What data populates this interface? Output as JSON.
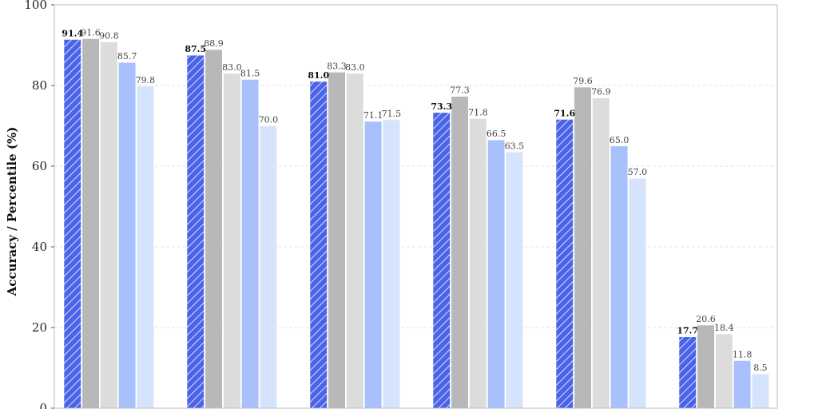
{
  "chart_data": {
    "type": "bar",
    "title": "",
    "ylabel": "Accuracy / Percentile (%)",
    "xlabel": "",
    "ylim": [
      0,
      100
    ],
    "yticks": [
      0,
      20,
      40,
      60,
      80,
      100
    ],
    "grid": "y-dashed",
    "categories": [
      "",
      "",
      "",
      "",
      "",
      ""
    ],
    "series": [
      {
        "values": [
          91.4,
          87.5,
          81.0,
          73.3,
          71.6,
          17.7
        ],
        "color": "#4a63e8",
        "hatch": true,
        "bold_labels": true
      },
      {
        "values": [
          91.6,
          88.9,
          83.3,
          77.3,
          79.6,
          20.6
        ],
        "color": "#b8b8b8"
      },
      {
        "values": [
          90.8,
          83.0,
          83.0,
          71.8,
          76.9,
          18.4
        ],
        "color": "#dcdcdc"
      },
      {
        "values": [
          85.7,
          81.5,
          71.1,
          66.5,
          65.0,
          11.8
        ],
        "color": "#a8c0fb"
      },
      {
        "values": [
          79.8,
          70.0,
          71.5,
          63.5,
          57.0,
          8.5
        ],
        "color": "#d6e3fc"
      }
    ]
  }
}
